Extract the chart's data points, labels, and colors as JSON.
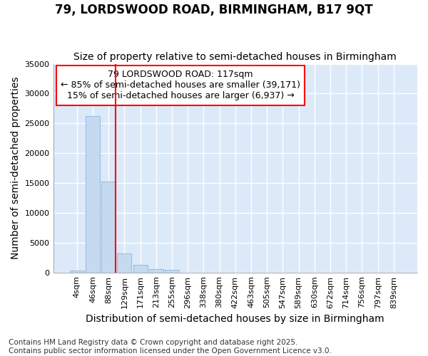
{
  "title_line1": "79, LORDSWOOD ROAD, BIRMINGHAM, B17 9QT",
  "title_line2": "Size of property relative to semi-detached houses in Birmingham",
  "xlabel": "Distribution of semi-detached houses by size in Birmingham",
  "ylabel": "Number of semi-detached properties",
  "bar_color": "#c5d9f1",
  "bar_edge_color": "#8ab4d9",
  "background_color": "#ffffff",
  "plot_bg_color": "#dce9f8",
  "grid_color": "#ffffff",
  "vline_color": "red",
  "annotation_text": "79 LORDSWOOD ROAD: 117sqm\n← 85% of semi-detached houses are smaller (39,171)\n15% of semi-detached houses are larger (6,937) →",
  "annotation_box_color": "white",
  "annotation_box_edge_color": "red",
  "categories": [
    "4sqm",
    "46sqm",
    "88sqm",
    "129sqm",
    "171sqm",
    "213sqm",
    "255sqm",
    "296sqm",
    "338sqm",
    "380sqm",
    "422sqm",
    "463sqm",
    "505sqm",
    "547sqm",
    "589sqm",
    "630sqm",
    "672sqm",
    "714sqm",
    "756sqm",
    "797sqm",
    "839sqm"
  ],
  "values": [
    350,
    26200,
    15200,
    3200,
    1300,
    500,
    400,
    0,
    0,
    0,
    0,
    0,
    0,
    0,
    0,
    0,
    0,
    0,
    0,
    0,
    0
  ],
  "ylim": [
    0,
    35000
  ],
  "yticks": [
    0,
    5000,
    10000,
    15000,
    20000,
    25000,
    30000,
    35000
  ],
  "footer_text": "Contains HM Land Registry data © Crown copyright and database right 2025.\nContains public sector information licensed under the Open Government Licence v3.0.",
  "title_fontsize": 12,
  "subtitle_fontsize": 10,
  "axis_label_fontsize": 10,
  "tick_fontsize": 8,
  "annotation_fontsize": 9,
  "footer_fontsize": 7.5
}
